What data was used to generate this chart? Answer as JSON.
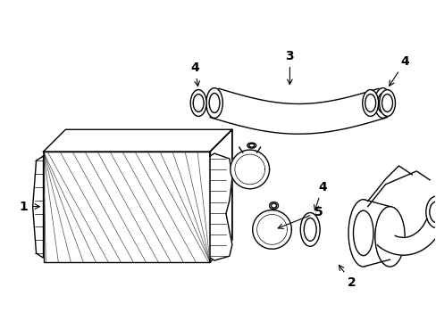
{
  "bg_color": "#ffffff",
  "line_color": "#000000",
  "lw": 1.0,
  "figsize": [
    4.89,
    3.6
  ],
  "dpi": 100
}
